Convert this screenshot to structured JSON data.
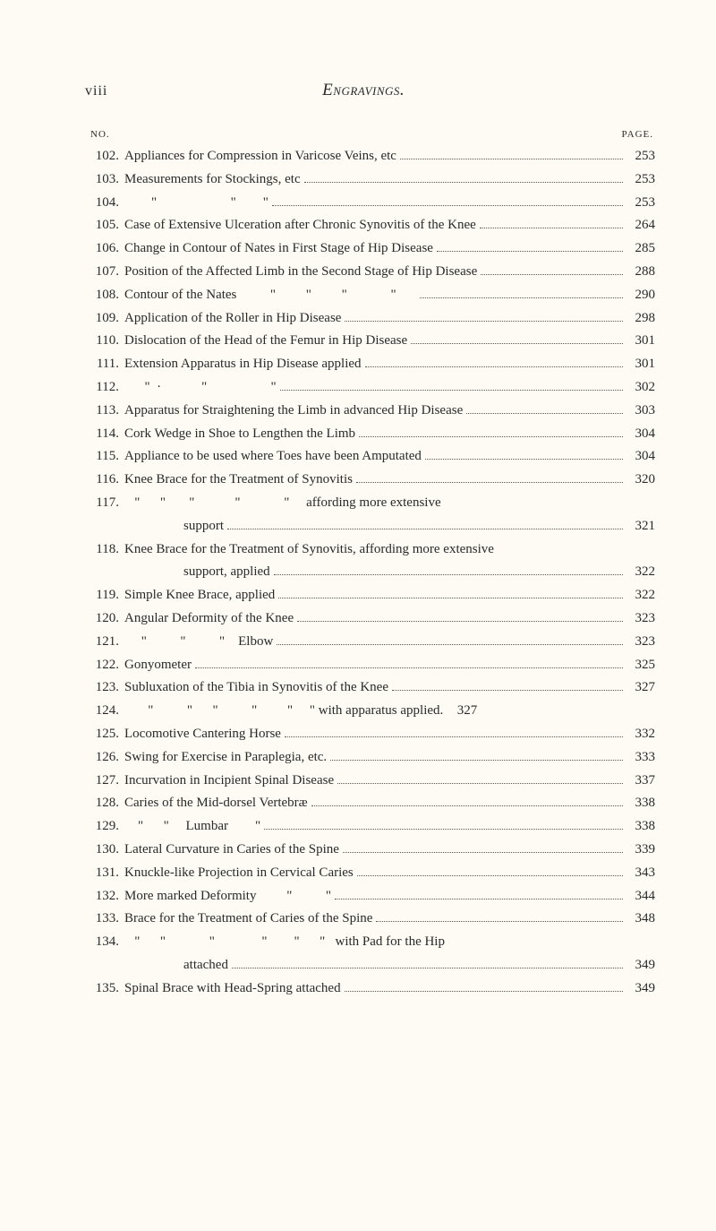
{
  "header": {
    "pageRoman": "viii",
    "title": "Engravings."
  },
  "columnHeads": {
    "left": "NO.",
    "right": "PAGE."
  },
  "entries": [
    {
      "num": "102.",
      "desc": "Appliances for Compression in Varicose Veins, etc",
      "page": "253"
    },
    {
      "num": "103.",
      "desc": "Measurements for Stockings, etc",
      "page": "253"
    },
    {
      "num": "104.",
      "desc": "        \"                      \"        \"",
      "page": "253"
    },
    {
      "num": "105.",
      "desc": "Case of Extensive Ulceration after Chronic Synovitis of the Knee",
      "page": "264"
    },
    {
      "num": "106.",
      "desc": "Change in Contour of Nates in First Stage of Hip Disease",
      "page": "285"
    },
    {
      "num": "107.",
      "desc": "Position of the Affected Limb in the Second Stage of Hip Disease",
      "page": "288"
    },
    {
      "num": "108.",
      "desc": "Contour of the Nates          \"         \"         \"             \"      ",
      "page": "290"
    },
    {
      "num": "109.",
      "desc": "Application of the Roller in Hip Disease",
      "page": "298"
    },
    {
      "num": "110.",
      "desc": "Dislocation of the Head of the Femur in Hip Disease",
      "page": "301"
    },
    {
      "num": "111.",
      "desc": "Extension Apparatus in Hip Disease applied",
      "page": "301"
    },
    {
      "num": "112.",
      "desc": "      \"  ·            \"                   \"",
      "page": "302"
    },
    {
      "num": "113.",
      "desc": "Apparatus for Straightening the Limb in advanced Hip Disease",
      "page": "303"
    },
    {
      "num": "114.",
      "desc": "Cork Wedge in Shoe to Lengthen the Limb",
      "page": "304"
    },
    {
      "num": "115.",
      "desc": "Appliance to be used where Toes have been Amputated",
      "page": "304"
    },
    {
      "num": "116.",
      "desc": "Knee Brace for the Treatment of Synovitis",
      "page": "320"
    },
    {
      "num": "117.",
      "desc": "   \"      \"       \"            \"             \"     affording more extensive",
      "page": null,
      "cont": {
        "desc": "support",
        "page": "321"
      }
    },
    {
      "num": "118.",
      "desc": "Knee Brace for the Treatment of Synovitis, affording more extensive",
      "page": null,
      "cont": {
        "desc": "support, applied",
        "page": "322"
      }
    },
    {
      "num": "119.",
      "desc": "Simple Knee Brace, applied",
      "page": "322"
    },
    {
      "num": "120.",
      "desc": "Angular Deformity of the Knee",
      "page": "323"
    },
    {
      "num": "121.",
      "desc": "     \"          \"          \"    Elbow",
      "page": "323"
    },
    {
      "num": "122.",
      "desc": "Gonyometer",
      "page": "325"
    },
    {
      "num": "123.",
      "desc": "Subluxation of the Tibia in Synovitis of the Knee",
      "page": "327"
    },
    {
      "num": "124.",
      "desc": "       \"          \"      \"          \"         \"     \" with apparatus applied.",
      "page": "327",
      "noLeader": true
    },
    {
      "num": "125.",
      "desc": "Locomotive Cantering Horse",
      "page": "332"
    },
    {
      "num": "126.",
      "desc": "Swing for Exercise in Paraplegia, etc.",
      "page": "333"
    },
    {
      "num": "127.",
      "desc": "Incurvation in Incipient Spinal Disease",
      "page": "337"
    },
    {
      "num": "128.",
      "desc": "Caries of the Mid-dorsel Vertebræ",
      "page": "338"
    },
    {
      "num": "129.",
      "desc": "    \"      \"     Lumbar        \"",
      "page": "338"
    },
    {
      "num": "130.",
      "desc": "Lateral Curvature in Caries of the Spine",
      "page": "339"
    },
    {
      "num": "131.",
      "desc": "Knuckle-like Projection in Cervical Caries",
      "page": "343"
    },
    {
      "num": "132.",
      "desc": "More marked Deformity         \"          \"",
      "page": "344"
    },
    {
      "num": "133.",
      "desc": "Brace for the Treatment of Caries of the Spine",
      "page": "348"
    },
    {
      "num": "134.",
      "desc": "   \"      \"             \"              \"        \"      \"   with Pad for the Hip",
      "page": null,
      "cont": {
        "desc": "attached",
        "page": "349"
      }
    },
    {
      "num": "135.",
      "desc": "Spinal Brace with Head-Spring attached",
      "page": "349"
    }
  ],
  "style": {
    "background": "#fdfbf4",
    "textColor": "#2a2a2a",
    "headerTitleFontSize": 19,
    "bodyFontSize": 15,
    "lineHeight": 1.72,
    "pageWidth": 800,
    "pageHeight": 1374
  }
}
